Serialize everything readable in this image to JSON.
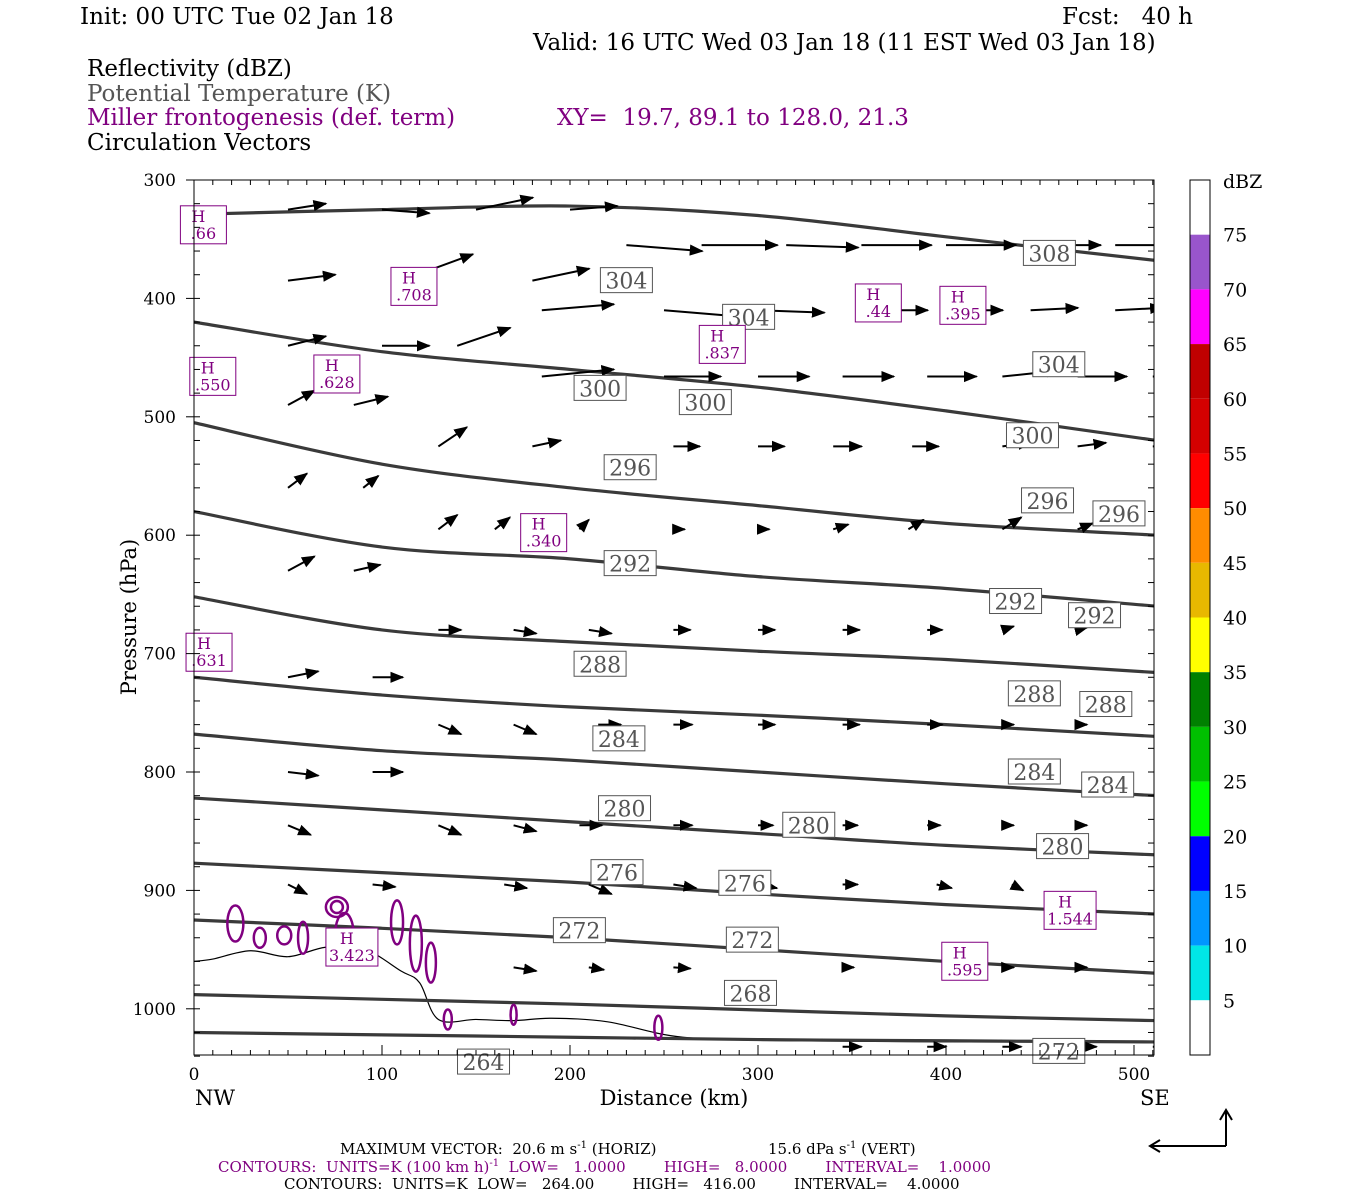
{
  "header": {
    "init": "Init: 00 UTC Tue 02 Jan 18",
    "fcst": "Fcst:   40 h",
    "valid": "Valid: 16 UTC Wed 03 Jan 18 (11 EST Wed 03 Jan 18)"
  },
  "legend_titles": {
    "reflectivity": "Reflectivity (dBZ)",
    "theta": "Potential Temperature (K)",
    "frontogenesis": "Miller frontogenesis (def. term)",
    "xy": "XY=  19.7, 89.1 to 128.0, 21.3",
    "vectors": "Circulation Vectors"
  },
  "axes": {
    "ylabel": "Pressure (hPa)",
    "xlabel": "Distance (km)",
    "left_end": "NW",
    "right_end": "SE",
    "y_ticks": [
      "300",
      "400",
      "500",
      "600",
      "700",
      "800",
      "900",
      "1000"
    ],
    "x_ticks": [
      "0",
      "100",
      "200",
      "300",
      "400",
      "500"
    ]
  },
  "colorbar": {
    "unit": "dBZ",
    "labels": [
      "75",
      "70",
      "65",
      "60",
      "55",
      "50",
      "45",
      "40",
      "35",
      "30",
      "25",
      "20",
      "15",
      "10",
      "5"
    ],
    "colors": [
      "#ffffff",
      "#9955cc",
      "#ff00ff",
      "#c00000",
      "#d40000",
      "#ff0000",
      "#ff8c00",
      "#e8b800",
      "#ffff00",
      "#008000",
      "#00c000",
      "#00ff00",
      "#0000ff",
      "#0096ff",
      "#00e6e6",
      "#ffffff"
    ]
  },
  "footer": {
    "max_vector": "MAXIMUM VECTOR:  20.6 m s",
    "max_vector_exp": "-1",
    "max_vector_horiz": " (HORIZ)",
    "max_vert": "15.6 dPa s",
    "max_vert_exp": "-1",
    "max_vert_tail": " (VERT)",
    "contours_purple_a": "CONTOURS:  UNITS=K (100 km h)",
    "contours_purple_exp": "-1",
    "contours_purple_b": "  LOW=   1.0000        HIGH=   8.0000        INTERVAL=    1.0000",
    "contours_black": "CONTOURS:  UNITS=K  LOW=   264.00        HIGH=   416.00        INTERVAL=    4.0000"
  },
  "chart_data": {
    "type": "line",
    "title": "",
    "xlabel": "Distance (km)",
    "ylabel": "Pressure (hPa)",
    "xlim": [
      0,
      512
    ],
    "ylim": [
      300,
      1040
    ],
    "y_inverted": true,
    "isentropes": [
      {
        "name": "308",
        "points": [
          [
            0,
            329
          ],
          [
            100,
            325
          ],
          [
            200,
            322
          ],
          [
            300,
            330
          ],
          [
            400,
            348
          ],
          [
            512,
            368
          ]
        ]
      },
      {
        "name": "304",
        "points": [
          [
            0,
            420
          ],
          [
            100,
            445
          ],
          [
            200,
            460
          ],
          [
            300,
            475
          ],
          [
            400,
            495
          ],
          [
            512,
            520
          ]
        ]
      },
      {
        "name": "300",
        "points": [
          [
            0,
            505
          ],
          [
            100,
            540
          ],
          [
            200,
            560
          ],
          [
            300,
            575
          ],
          [
            400,
            590
          ],
          [
            512,
            600
          ]
        ]
      },
      {
        "name": "296",
        "points": [
          [
            0,
            580
          ],
          [
            100,
            610
          ],
          [
            200,
            620
          ],
          [
            300,
            635
          ],
          [
            400,
            645
          ],
          [
            512,
            660
          ]
        ]
      },
      {
        "name": "292",
        "points": [
          [
            0,
            652
          ],
          [
            100,
            680
          ],
          [
            200,
            690
          ],
          [
            300,
            698
          ],
          [
            400,
            705
          ],
          [
            512,
            716
          ]
        ]
      },
      {
        "name": "288",
        "points": [
          [
            0,
            720
          ],
          [
            100,
            735
          ],
          [
            200,
            745
          ],
          [
            300,
            752
          ],
          [
            400,
            760
          ],
          [
            512,
            770
          ]
        ]
      },
      {
        "name": "284",
        "points": [
          [
            0,
            768
          ],
          [
            100,
            782
          ],
          [
            200,
            790
          ],
          [
            300,
            800
          ],
          [
            400,
            810
          ],
          [
            512,
            820
          ]
        ]
      },
      {
        "name": "280",
        "points": [
          [
            0,
            822
          ],
          [
            100,
            832
          ],
          [
            200,
            842
          ],
          [
            300,
            852
          ],
          [
            400,
            862
          ],
          [
            512,
            870
          ]
        ]
      },
      {
        "name": "276",
        "points": [
          [
            0,
            877
          ],
          [
            100,
            885
          ],
          [
            200,
            893
          ],
          [
            300,
            903
          ],
          [
            400,
            912
          ],
          [
            512,
            920
          ]
        ]
      },
      {
        "name": "272",
        "points": [
          [
            0,
            925
          ],
          [
            100,
            932
          ],
          [
            200,
            940
          ],
          [
            300,
            950
          ],
          [
            400,
            960
          ],
          [
            512,
            970
          ]
        ]
      },
      {
        "name": "268",
        "points": [
          [
            0,
            988
          ],
          [
            100,
            992
          ],
          [
            200,
            996
          ],
          [
            300,
            1001
          ],
          [
            400,
            1006
          ],
          [
            512,
            1010
          ]
        ]
      },
      {
        "name": "264",
        "points": [
          [
            0,
            1020
          ],
          [
            100,
            1022
          ],
          [
            200,
            1024
          ],
          [
            300,
            1026
          ],
          [
            400,
            1027
          ],
          [
            512,
            1028
          ]
        ]
      }
    ],
    "theta_labels": [
      {
        "text": "308",
        "x": 455,
        "p": 362
      },
      {
        "text": "304",
        "x": 230,
        "p": 385
      },
      {
        "text": "304",
        "x": 295,
        "p": 416
      },
      {
        "text": "304",
        "x": 460,
        "p": 456
      },
      {
        "text": "300",
        "x": 216,
        "p": 476
      },
      {
        "text": "300",
        "x": 272,
        "p": 488
      },
      {
        "text": "300",
        "x": 446,
        "p": 516
      },
      {
        "text": "296",
        "x": 232,
        "p": 543
      },
      {
        "text": "296",
        "x": 454,
        "p": 571
      },
      {
        "text": "296",
        "x": 492,
        "p": 582
      },
      {
        "text": "292",
        "x": 232,
        "p": 624
      },
      {
        "text": "292",
        "x": 437,
        "p": 656
      },
      {
        "text": "292",
        "x": 479,
        "p": 668
      },
      {
        "text": "288",
        "x": 216,
        "p": 709
      },
      {
        "text": "288",
        "x": 447,
        "p": 734
      },
      {
        "text": "288",
        "x": 485,
        "p": 743
      },
      {
        "text": "284",
        "x": 226,
        "p": 772
      },
      {
        "text": "284",
        "x": 447,
        "p": 800
      },
      {
        "text": "284",
        "x": 486,
        "p": 811
      },
      {
        "text": "280",
        "x": 229,
        "p": 831
      },
      {
        "text": "280",
        "x": 327,
        "p": 845
      },
      {
        "text": "280",
        "x": 462,
        "p": 863
      },
      {
        "text": "276",
        "x": 225,
        "p": 885
      },
      {
        "text": "276",
        "x": 293,
        "p": 894
      },
      {
        "text": "272",
        "x": 205,
        "p": 934
      },
      {
        "text": "272",
        "x": 297,
        "p": 942
      },
      {
        "text": "268",
        "x": 296,
        "p": 987
      },
      {
        "text": "272",
        "x": 460,
        "p": 1036
      },
      {
        "text": "264",
        "x": 154,
        "p": 1045
      }
    ],
    "frontogenesis_maxima": [
      {
        "label": "H",
        "value": ".66",
        "x": 5,
        "p": 337
      },
      {
        "label": "H",
        "value": ".708",
        "x": 117,
        "p": 389
      },
      {
        "label": "H",
        "value": ".44",
        "x": 364,
        "p": 403
      },
      {
        "label": "H",
        "value": ".395",
        "x": 409,
        "p": 405
      },
      {
        "label": "H",
        "value": ".837",
        "x": 281,
        "p": 438
      },
      {
        "label": "H",
        "value": ".550",
        "x": 10,
        "p": 465
      },
      {
        "label": "H",
        "value": ".628",
        "x": 76,
        "p": 463
      },
      {
        "label": "H",
        "value": ".340",
        "x": 186,
        "p": 597
      },
      {
        "label": "H",
        "value": ".631",
        "x": 8,
        "p": 698
      },
      {
        "label": "H",
        "value": "3.423",
        "x": 84,
        "p": 947
      },
      {
        "label": "H",
        "value": ".595",
        "x": 410,
        "p": 959
      },
      {
        "label": "H",
        "value": "1.544",
        "x": 466,
        "p": 916
      }
    ]
  }
}
